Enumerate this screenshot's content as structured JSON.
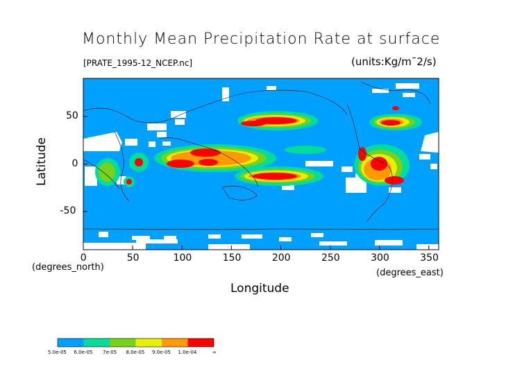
{
  "title": "Monthly Mean Precipitation Rate at surface",
  "file_label": "[PRATE_1995-12_NCEP.nc]",
  "units": "(units:Kg/m¯2/s)",
  "axes": {
    "ylabel": "Latitude",
    "xlabel": "Longitude",
    "y_units": "(degrees_north)",
    "x_units": "(degrees_east)",
    "x_ticks": [
      "0",
      "50",
      "100",
      "150",
      "200",
      "250",
      "300",
      "350"
    ],
    "y_ticks": [
      "50",
      "0",
      "-50"
    ]
  },
  "colorbar": {
    "labels": [
      "5.0e-05",
      "6.0e-05",
      "7e-05",
      "8.0e-05",
      "9.0e-05",
      "1.0e-04",
      "∞"
    ],
    "colors": [
      "#00a0ff",
      "#00dc9a",
      "#7ad11a",
      "#e6f000",
      "#ff9a00",
      "#ff0000"
    ]
  },
  "map": {
    "ocean_color": "#00a0ff",
    "missing_color": "#ffffff",
    "x_range": [
      0,
      360
    ],
    "y_range": [
      -90,
      90
    ]
  }
}
